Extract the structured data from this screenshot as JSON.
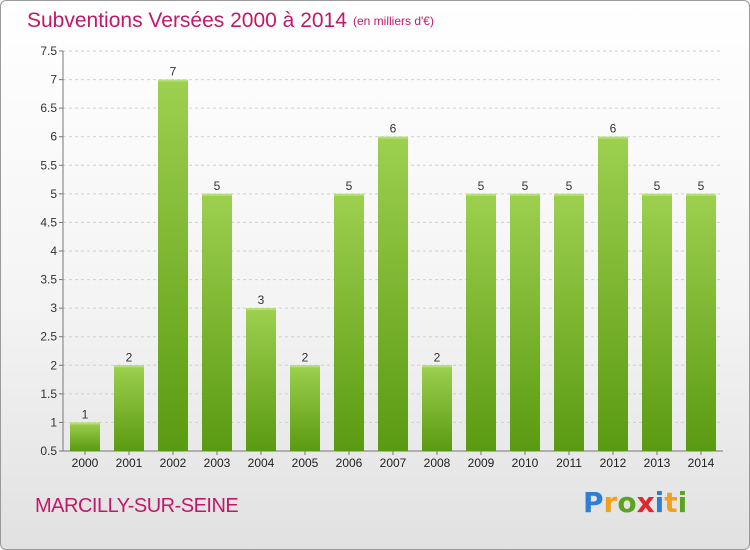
{
  "header": {
    "title": "Subventions Versées 2000 à 2014",
    "unit": "(en milliers d'€)"
  },
  "footer": {
    "commune": "MARCILLY-SUR-SEINE",
    "logo": "Proxiti"
  },
  "colors": {
    "title": "#c2186b",
    "bar_top": "#9dd04f",
    "bar_bottom": "#5a9a12"
  },
  "chart_data": {
    "type": "bar",
    "categories": [
      "2000",
      "2001",
      "2002",
      "2003",
      "2004",
      "2005",
      "2006",
      "2007",
      "2008",
      "2009",
      "2010",
      "2011",
      "2012",
      "2013",
      "2014"
    ],
    "values": [
      1,
      2,
      7,
      5,
      3,
      2,
      5,
      6,
      2,
      5,
      5,
      5,
      6,
      5,
      5
    ],
    "title": "Subventions Versées 2000 à 2014",
    "xlabel": "",
    "ylabel": "",
    "ylim": [
      0.5,
      7.5
    ],
    "yticks": [
      "0.5",
      "1",
      "1.5",
      "2",
      "2.5",
      "3",
      "3.5",
      "4",
      "4.5",
      "5",
      "5.5",
      "6",
      "6.5",
      "7",
      "7.5"
    ],
    "grid": true,
    "data_labels": true
  }
}
